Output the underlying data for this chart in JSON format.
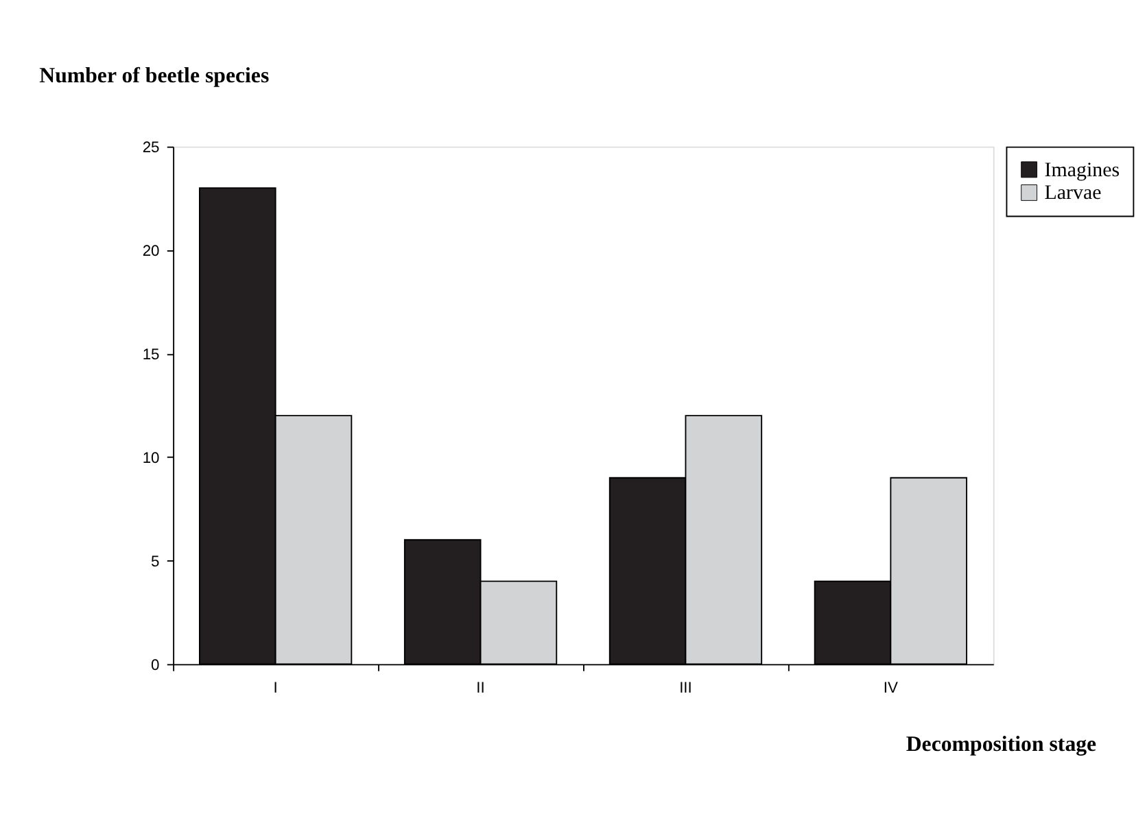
{
  "chart_data": {
    "type": "bar",
    "title": "Number of beetle species",
    "xlabel": "Decomposition stage",
    "categories": [
      "I",
      "II",
      "III",
      "IV"
    ],
    "series": [
      {
        "name": "Imagines",
        "color": "#231f20",
        "values": [
          23,
          6,
          9,
          4
        ]
      },
      {
        "name": "Larvae",
        "color": "#d1d3d4",
        "values": [
          12,
          4,
          12,
          9
        ]
      }
    ],
    "ylim": [
      0,
      25
    ],
    "yticks": [
      0,
      5,
      10,
      15,
      20,
      25
    ],
    "grid": false,
    "legend": "right"
  }
}
